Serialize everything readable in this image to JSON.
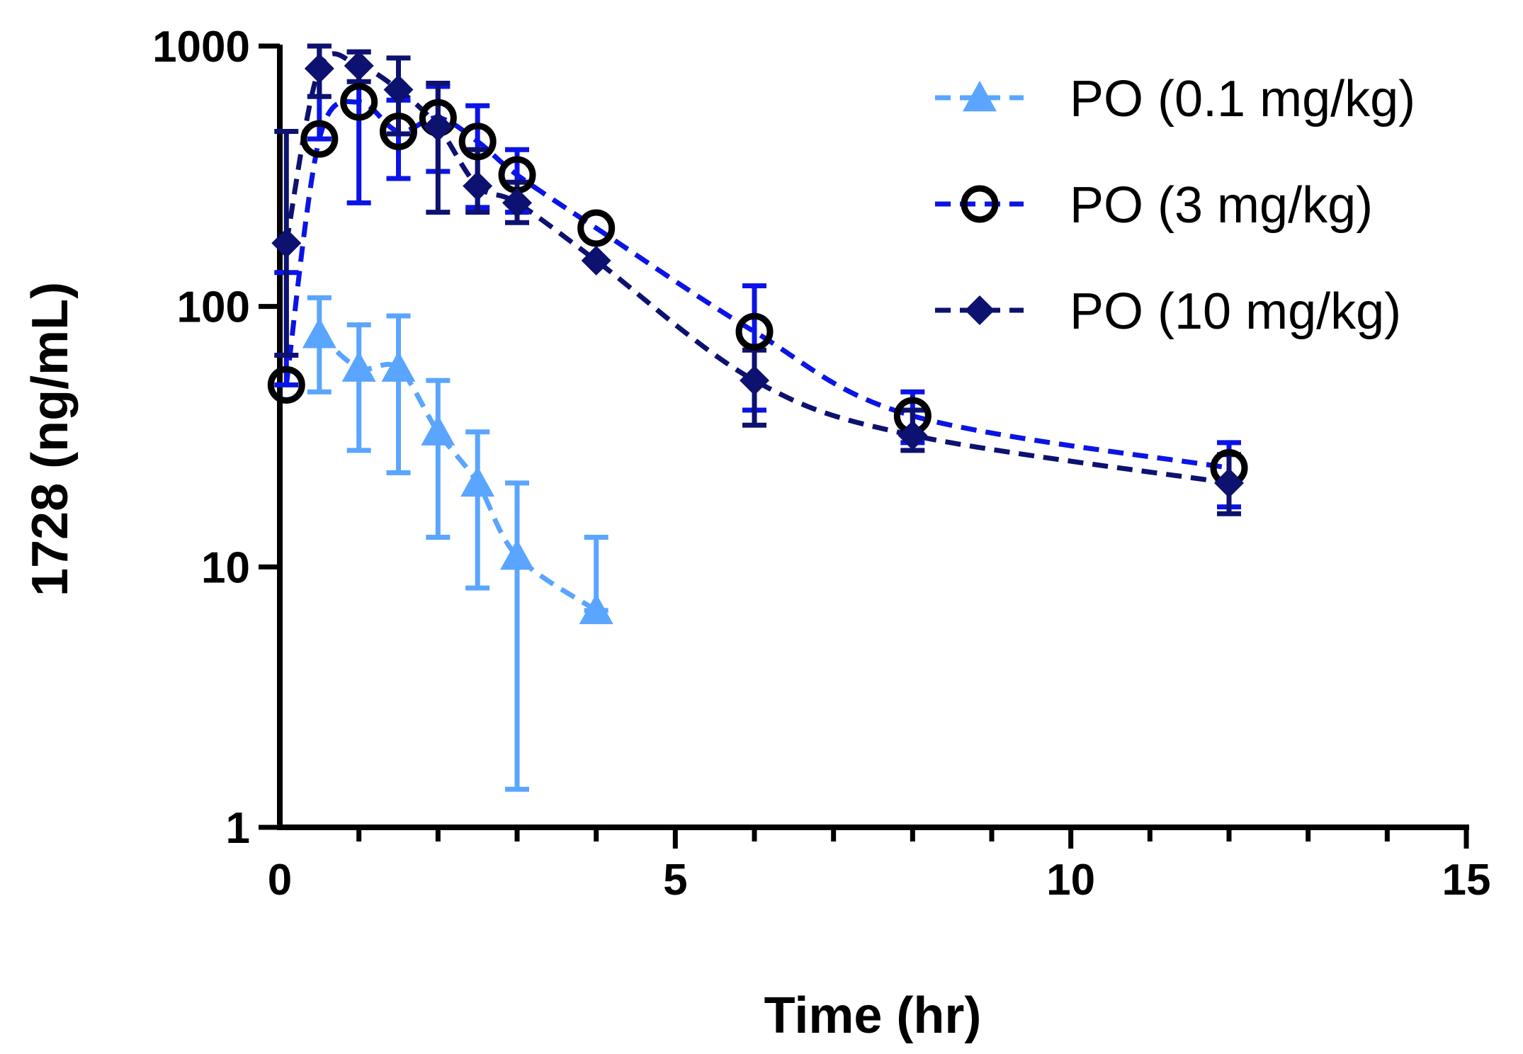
{
  "chart_data": {
    "type": "line",
    "xlabel": "Time (hr)",
    "ylabel": "1728 (ng/mL)",
    "xlim": [
      0,
      15
    ],
    "ylim": [
      1,
      1000
    ],
    "yscale": "log",
    "xticks": [
      0,
      5,
      10,
      15
    ],
    "xtick_labels": [
      "0",
      "5",
      "10",
      "15"
    ],
    "yticks": [
      1,
      10,
      100,
      1000
    ],
    "ytick_labels": [
      "1",
      "10",
      "100",
      "1000"
    ],
    "legend_position": "top-right",
    "grid": false,
    "series": [
      {
        "name": "PO (0.1 mg/kg)",
        "color": "#5aa5ff",
        "marker": "triangle",
        "x": [
          0.5,
          1,
          1.5,
          2,
          2.5,
          3,
          4
        ],
        "y": [
          78,
          58,
          58,
          33,
          21,
          11,
          6.8
        ],
        "err_low": [
          47,
          28,
          23,
          13,
          8.3,
          1.4,
          6.8
        ],
        "err_high": [
          108,
          85,
          92,
          52,
          33,
          21,
          13
        ]
      },
      {
        "name": "PO (3 mg/kg)",
        "color": "#0b14e6",
        "marker": "open-circle",
        "x": [
          0.083,
          0.5,
          1,
          1.5,
          2,
          2.5,
          3,
          4,
          6,
          8,
          12
        ],
        "y": [
          50,
          440,
          610,
          470,
          530,
          430,
          320,
          200,
          80,
          38,
          24
        ],
        "err_low": [
          50,
          440,
          250,
          310,
          330,
          240,
          230,
          200,
          40,
          30,
          17
        ],
        "err_high": [
          135,
          1000,
          950,
          620,
          700,
          590,
          400,
          200,
          120,
          47,
          30
        ]
      },
      {
        "name": "PO (10 mg/kg)",
        "color": "#0d1170",
        "marker": "diamond",
        "x": [
          0.083,
          0.5,
          1,
          1.5,
          2,
          2.5,
          3,
          4,
          6,
          8,
          12
        ],
        "y": [
          175,
          820,
          840,
          680,
          490,
          290,
          250,
          150,
          52,
          32,
          21
        ],
        "err_low": [
          65,
          640,
          730,
          460,
          230,
          230,
          210,
          150,
          35,
          28,
          16
        ],
        "err_high": [
          470,
          1000,
          950,
          900,
          720,
          400,
          300,
          150,
          68,
          40,
          27
        ]
      }
    ]
  }
}
